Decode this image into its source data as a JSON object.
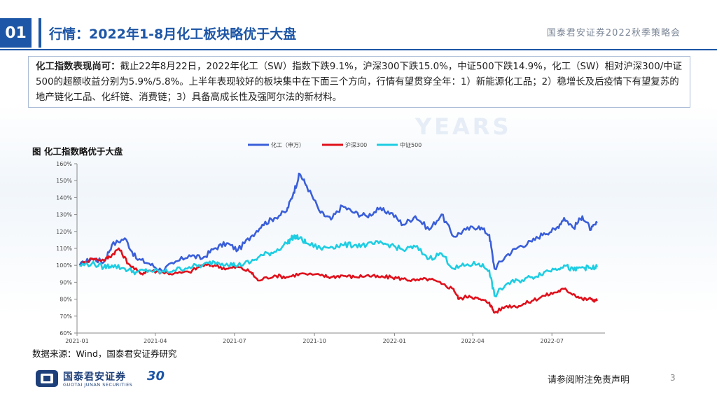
{
  "header": {
    "section_number": "01",
    "title": "行情：2022年1-8月化工板块略优于大盘",
    "conference": "国泰君安证券2022秋季策略会"
  },
  "summary": {
    "lead": "化工指数表现尚可：",
    "text": "截止22年8月22日，2022年化工（SW）指数下跌9.1%，沪深300下跌15.0%，中证500下跌14.9%，化工（SW）相对沪深300/中证500的超额收益分别为5.9%/5.8%。上半年表现较好的板块集中在下面三个方向，行情有望贯穿全年：1）新能源化工品；2）稳增长及后疫情下有望复苏的地产链化工品、化纤链、消费链；3）具备高成长性及强阿尔法的新材料。"
  },
  "figure": {
    "title": "图 化工指数略优于大盘",
    "source": "数据来源：Wind，国泰君安证券研究"
  },
  "footer": {
    "logo_text": "国泰君安证券",
    "logo_sub": "GUOTAI JUNAN SECURITIES",
    "anniv": "30",
    "disclaimer": "请参阅附注免责声明",
    "page": "3"
  },
  "watermark": {
    "years": "YEARS"
  },
  "chart_data": {
    "type": "line",
    "title": "",
    "xlabel": "",
    "ylabel": "",
    "ylim": [
      60,
      160
    ],
    "yticks": [
      "60%",
      "70%",
      "80%",
      "90%",
      "100%",
      "110%",
      "120%",
      "130%",
      "140%",
      "150%",
      "160%"
    ],
    "xticks": [
      "2021-01",
      "2021-04",
      "2021-07",
      "2021-10",
      "2022-01",
      "2022-04",
      "2022-07"
    ],
    "xrange": [
      "2021-01",
      "2022-08"
    ],
    "legend_position": "top",
    "series": [
      {
        "name": "化工（申万）",
        "color": "#3b5fd9",
        "x": [
          "2021-01-04",
          "2021-01-18",
          "2021-02-01",
          "2021-02-10",
          "2021-02-25",
          "2021-03-10",
          "2021-03-25",
          "2021-04-08",
          "2021-04-22",
          "2021-05-10",
          "2021-05-25",
          "2021-06-08",
          "2021-06-22",
          "2021-07-05",
          "2021-07-20",
          "2021-08-02",
          "2021-08-16",
          "2021-08-30",
          "2021-09-07",
          "2021-09-14",
          "2021-09-22",
          "2021-10-08",
          "2021-10-20",
          "2021-11-02",
          "2021-11-16",
          "2021-11-30",
          "2021-12-14",
          "2021-12-28",
          "2022-01-11",
          "2022-01-25",
          "2022-02-10",
          "2022-02-24",
          "2022-03-10",
          "2022-03-24",
          "2022-04-08",
          "2022-04-20",
          "2022-04-26",
          "2022-05-10",
          "2022-05-24",
          "2022-06-08",
          "2022-06-22",
          "2022-07-05",
          "2022-07-15",
          "2022-07-26",
          "2022-08-05",
          "2022-08-15",
          "2022-08-22"
        ],
        "values": [
          100,
          104,
          102,
          112,
          116,
          104,
          101,
          97,
          101,
          106,
          104,
          110,
          113,
          109,
          117,
          124,
          128,
          132,
          143,
          154,
          147,
          131,
          127,
          135,
          131,
          129,
          133,
          131,
          124,
          129,
          121,
          130,
          117,
          121,
          123,
          118,
          98,
          106,
          111,
          114,
          119,
          121,
          128,
          122,
          129,
          121,
          125
        ]
      },
      {
        "name": "沪深300",
        "color": "#e0101b",
        "x": [
          "2021-01-04",
          "2021-01-18",
          "2021-02-01",
          "2021-02-10",
          "2021-02-18",
          "2021-03-01",
          "2021-03-15",
          "2021-03-25",
          "2021-04-08",
          "2021-04-22",
          "2021-05-10",
          "2021-05-25",
          "2021-06-08",
          "2021-06-22",
          "2021-07-05",
          "2021-07-20",
          "2021-07-28",
          "2021-08-16",
          "2021-08-30",
          "2021-09-14",
          "2021-10-08",
          "2021-10-20",
          "2021-11-02",
          "2021-11-16",
          "2021-11-30",
          "2021-12-14",
          "2021-12-28",
          "2022-01-11",
          "2022-01-25",
          "2022-02-10",
          "2022-02-24",
          "2022-03-10",
          "2022-03-16",
          "2022-03-28",
          "2022-04-08",
          "2022-04-20",
          "2022-04-26",
          "2022-05-10",
          "2022-05-24",
          "2022-06-08",
          "2022-06-22",
          "2022-07-05",
          "2022-07-15",
          "2022-07-26",
          "2022-08-05",
          "2022-08-15",
          "2022-08-22"
        ],
        "values": [
          100,
          104,
          103,
          106,
          110,
          101,
          95,
          97,
          96,
          95,
          96,
          100,
          100,
          98,
          99,
          96,
          91,
          94,
          93,
          95,
          94,
          93,
          94,
          93,
          94,
          93,
          93,
          92,
          91,
          92,
          89,
          86,
          80,
          82,
          80,
          78,
          72,
          76,
          76,
          79,
          82,
          84,
          86,
          83,
          80,
          80,
          79
        ]
      },
      {
        "name": "中证500",
        "color": "#1ecde2",
        "x": [
          "2021-01-04",
          "2021-01-18",
          "2021-02-01",
          "2021-02-10",
          "2021-02-25",
          "2021-03-10",
          "2021-03-25",
          "2021-04-08",
          "2021-04-22",
          "2021-05-10",
          "2021-05-25",
          "2021-06-08",
          "2021-06-22",
          "2021-07-05",
          "2021-07-20",
          "2021-08-02",
          "2021-08-16",
          "2021-08-30",
          "2021-09-07",
          "2021-09-14",
          "2021-09-22",
          "2021-10-08",
          "2021-10-20",
          "2021-11-02",
          "2021-11-16",
          "2021-11-30",
          "2021-12-14",
          "2021-12-28",
          "2022-01-11",
          "2022-01-25",
          "2022-02-10",
          "2022-02-24",
          "2022-03-10",
          "2022-03-24",
          "2022-04-08",
          "2022-04-20",
          "2022-04-26",
          "2022-05-10",
          "2022-05-24",
          "2022-06-08",
          "2022-06-22",
          "2022-07-05",
          "2022-07-15",
          "2022-07-26",
          "2022-08-05",
          "2022-08-15",
          "2022-08-22"
        ],
        "values": [
          100,
          101,
          99,
          100,
          98,
          96,
          97,
          96,
          97,
          99,
          100,
          102,
          101,
          100,
          102,
          106,
          108,
          113,
          117,
          116,
          113,
          110,
          111,
          112,
          112,
          112,
          113,
          112,
          109,
          111,
          104,
          107,
          98,
          100,
          101,
          97,
          82,
          89,
          91,
          93,
          96,
          98,
          100,
          97,
          99,
          98,
          99
        ]
      }
    ]
  }
}
